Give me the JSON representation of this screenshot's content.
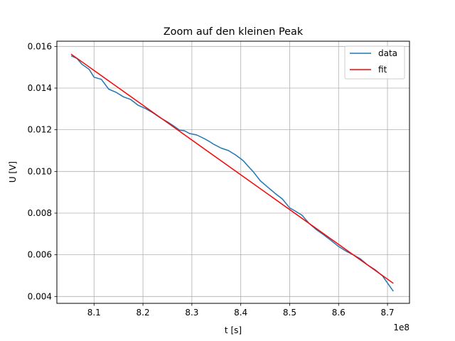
{
  "chart_data": {
    "type": "line",
    "title": "Zoom auf den kleinen Peak",
    "xlabel": "t [s]",
    "ylabel": "U [V]",
    "x_offset_label": "1e8",
    "xlim": [
      8.024,
      8.745
    ],
    "ylim": [
      0.00367,
      0.01625
    ],
    "xticks": [
      8.1,
      8.2,
      8.3,
      8.4,
      8.5,
      8.6,
      8.7
    ],
    "xtick_labels": [
      "8.1",
      "8.2",
      "8.3",
      "8.4",
      "8.5",
      "8.6",
      "8.7"
    ],
    "yticks": [
      0.004,
      0.006,
      0.008,
      0.01,
      0.012,
      0.014,
      0.016
    ],
    "ytick_labels": [
      "0.004",
      "0.006",
      "0.008",
      "0.010",
      "0.012",
      "0.014",
      "0.016"
    ],
    "grid": true,
    "legend_position": "top-right",
    "series": [
      {
        "name": "data",
        "color": "#1f77b4",
        "x": [
          8.053,
          8.065,
          8.075,
          8.09,
          8.1,
          8.115,
          8.13,
          8.145,
          8.16,
          8.175,
          8.19,
          8.205,
          8.22,
          8.235,
          8.25,
          8.265,
          8.275,
          8.285,
          8.295,
          8.31,
          8.325,
          8.335,
          8.345,
          8.36,
          8.375,
          8.39,
          8.405,
          8.415,
          8.425,
          8.44,
          8.455,
          8.47,
          8.485,
          8.5,
          8.51,
          8.525,
          8.54,
          8.555,
          8.57,
          8.585,
          8.6,
          8.615,
          8.63,
          8.645,
          8.66,
          8.675,
          8.69,
          8.7,
          8.712
        ],
        "y": [
          0.01555,
          0.01542,
          0.01515,
          0.0149,
          0.01452,
          0.01442,
          0.01395,
          0.0138,
          0.01358,
          0.01345,
          0.01318,
          0.01302,
          0.01282,
          0.01258,
          0.01238,
          0.01215,
          0.01198,
          0.01195,
          0.01182,
          0.01175,
          0.01158,
          0.01145,
          0.0113,
          0.01112,
          0.011,
          0.01078,
          0.01052,
          0.01025,
          0.01,
          0.00955,
          0.00925,
          0.00895,
          0.00868,
          0.00825,
          0.00812,
          0.0079,
          0.0075,
          0.0072,
          0.00695,
          0.00668,
          0.0064,
          0.00618,
          0.006,
          0.0058,
          0.0055,
          0.00528,
          0.00498,
          0.00465,
          0.00425
        ]
      },
      {
        "name": "fit",
        "color": "#ff0000",
        "x": [
          8.053,
          8.712
        ],
        "y": [
          0.01563,
          0.00463
        ]
      }
    ]
  }
}
